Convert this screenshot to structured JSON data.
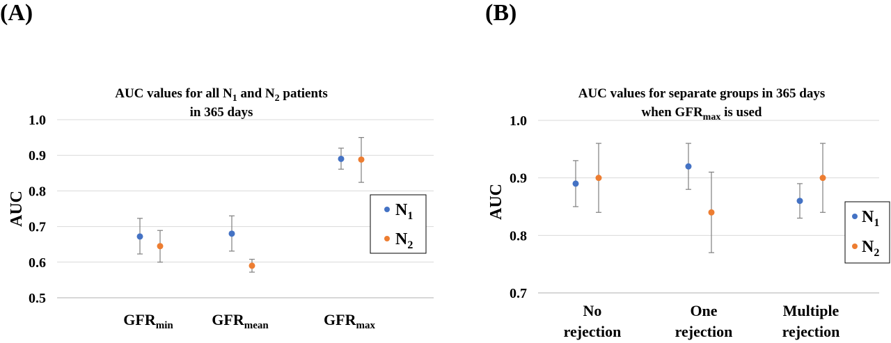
{
  "chart_data": [
    {
      "panel_label": "(A)",
      "type": "scatter",
      "title_parts": [
        "AUC values for all N",
        "1",
        " and N",
        "2",
        " patients"
      ],
      "title_line2": "in 365 days",
      "ylabel": "AUC",
      "ylim": [
        0.5,
        1.0
      ],
      "yticks": [
        "1.0",
        "0.9",
        "0.8",
        "0.7",
        "0.6",
        "0.5"
      ],
      "ytick_values": [
        1.0,
        0.9,
        0.8,
        0.7,
        0.6,
        0.5
      ],
      "grid": true,
      "legend_position": "right",
      "categories": [
        {
          "main": "GFR",
          "sub": "min"
        },
        {
          "main": "GFR",
          "sub": "mean"
        },
        {
          "main": "GFR",
          "sub": "max"
        }
      ],
      "series": [
        {
          "name_main": "N",
          "name_sub": "1",
          "color": "#4472c4",
          "values": [
            0.672,
            0.68,
            0.89
          ],
          "lower": [
            0.623,
            0.631,
            0.861
          ],
          "upper": [
            0.723,
            0.73,
            0.92
          ]
        },
        {
          "name_main": "N",
          "name_sub": "2",
          "color": "#ed7d31",
          "values": [
            0.645,
            0.59,
            0.888
          ],
          "lower": [
            0.6,
            0.572,
            0.824
          ],
          "upper": [
            0.689,
            0.608,
            0.95
          ]
        }
      ]
    },
    {
      "panel_label": "(B)",
      "type": "scatter",
      "title_parts": [
        "AUC values for separate groups in 365 days"
      ],
      "title_line2_parts": [
        "when GFR",
        "max",
        " is used"
      ],
      "ylabel": "AUC",
      "ylim": [
        0.7,
        1.0
      ],
      "yticks": [
        "1.0",
        "0.9",
        "0.8",
        "0.7"
      ],
      "ytick_values": [
        1.0,
        0.9,
        0.8,
        0.7
      ],
      "grid": true,
      "legend_position": "right",
      "categories": [
        {
          "line1": "No",
          "line2": "rejection"
        },
        {
          "line1": "One",
          "line2": "rejection"
        },
        {
          "line1": "Multiple",
          "line2": "rejection"
        }
      ],
      "series": [
        {
          "name_main": "N",
          "name_sub": "1",
          "color": "#4472c4",
          "values": [
            0.89,
            0.92,
            0.86
          ],
          "lower": [
            0.85,
            0.88,
            0.83
          ],
          "upper": [
            0.93,
            0.96,
            0.89
          ]
        },
        {
          "name_main": "N",
          "name_sub": "2",
          "color": "#ed7d31",
          "values": [
            0.9,
            0.84,
            0.9
          ],
          "lower": [
            0.84,
            0.77,
            0.84
          ],
          "upper": [
            0.96,
            0.91,
            0.96
          ]
        }
      ]
    }
  ]
}
